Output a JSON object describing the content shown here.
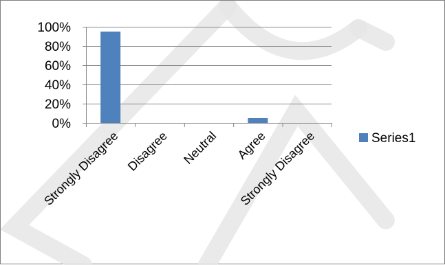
{
  "chart_data": {
    "type": "bar",
    "categories": [
      "Strongly Disagree",
      "Disagree",
      "Neutral",
      "Agree",
      "Strongly Disagree"
    ],
    "series": [
      {
        "name": "Series1",
        "values": [
          95,
          0,
          0,
          5,
          0
        ],
        "color": "#4f81bd"
      }
    ],
    "ylim": [
      0,
      100
    ],
    "yticks": [
      "0%",
      "20%",
      "40%",
      "60%",
      "80%",
      "100%"
    ],
    "ytick_values": [
      0,
      20,
      40,
      60,
      80,
      100
    ],
    "grid": true,
    "legend": "right",
    "title": "",
    "xlabel": "",
    "ylabel": ""
  },
  "colors": {
    "bar": "#4f81bd",
    "grid": "#868686",
    "axis": "#868686",
    "border": "#7f7f7f",
    "watermark": "#e6e6e6"
  }
}
